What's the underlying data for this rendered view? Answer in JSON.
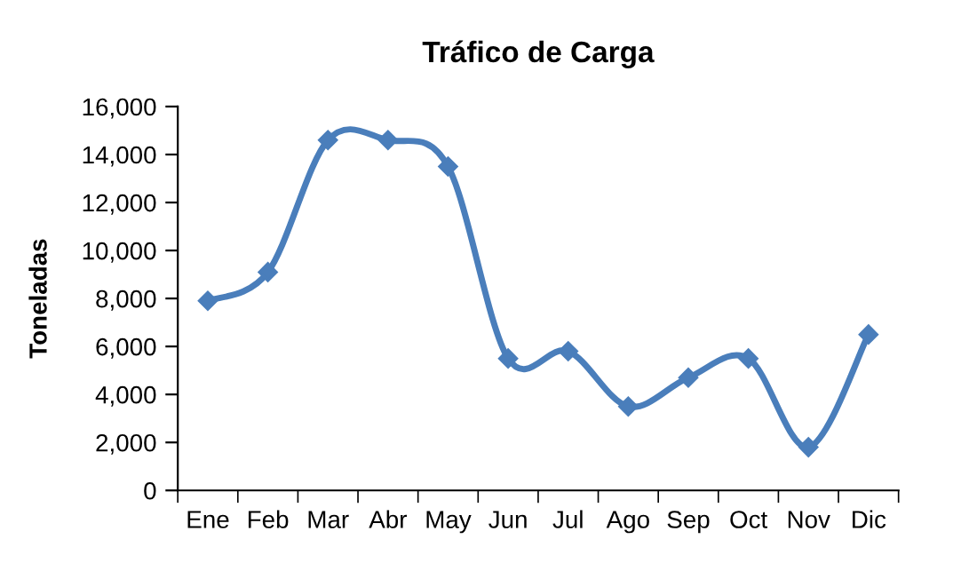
{
  "chart_data": {
    "type": "line",
    "title": "Tráfico de Carga",
    "ylabel": "Toneladas",
    "categories": [
      "Ene",
      "Feb",
      "Mar",
      "Abr",
      "May",
      "Jun",
      "Jul",
      "Ago",
      "Sep",
      "Oct",
      "Nov",
      "Dic"
    ],
    "series": [
      {
        "color": "#4a7ebb",
        "values": [
          7900,
          9100,
          14600,
          14600,
          13500,
          5500,
          5800,
          3500,
          4700,
          5500,
          1800,
          6500
        ]
      }
    ],
    "ylim": [
      0,
      16000
    ],
    "yticks": [
      {
        "value": 0,
        "label": "0"
      },
      {
        "value": 2000,
        "label": "2,000"
      },
      {
        "value": 4000,
        "label": "4,000"
      },
      {
        "value": 6000,
        "label": "6,000"
      },
      {
        "value": 8000,
        "label": "8,000"
      },
      {
        "value": 10000,
        "label": "10,000"
      },
      {
        "value": 12000,
        "label": "12,000"
      },
      {
        "value": 14000,
        "label": "14,000"
      },
      {
        "value": 16000,
        "label": "16,000"
      }
    ],
    "grid": false,
    "legend": false,
    "marker": "diamond",
    "line_style": "solid"
  }
}
